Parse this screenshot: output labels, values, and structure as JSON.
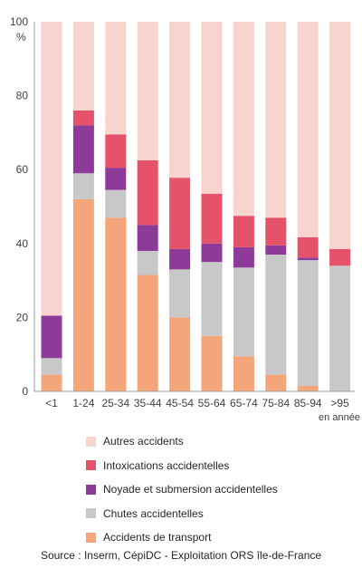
{
  "chart_data": {
    "type": "bar",
    "stacked": true,
    "ylabel": "%",
    "ylim": [
      0,
      100
    ],
    "yticks": [
      0,
      20,
      40,
      60,
      80,
      100
    ],
    "x_unit_label": "en année",
    "categories": [
      "<1",
      "1-24",
      "25-34",
      "35-44",
      "45-54",
      "55-64",
      "65-74",
      "75-84",
      "85-94",
      ">95"
    ],
    "series": [
      {
        "name": "Accidents de transport",
        "color": "#f4a67a",
        "values": [
          4.5,
          52,
          47,
          31.5,
          20,
          15,
          9.5,
          4.5,
          1.5,
          0
        ]
      },
      {
        "name": "Chutes accidentelles",
        "color": "#c8c8c8",
        "values": [
          4.5,
          7,
          7.5,
          6.5,
          13,
          20,
          24,
          32.5,
          34,
          34
        ]
      },
      {
        "name": "Noyade et submersion accidentelles",
        "color": "#8e3a98",
        "values": [
          11.5,
          13,
          6,
          7,
          5.5,
          5,
          5.5,
          2.5,
          0.7,
          0
        ]
      },
      {
        "name": "Intoxications accidentelles",
        "color": "#e5526a",
        "values": [
          0,
          4,
          9,
          17.5,
          19.3,
          13.5,
          8.5,
          7.5,
          5.5,
          4.5
        ]
      },
      {
        "name": "Autres accidents",
        "color": "#f8d4cf",
        "values": [
          79.5,
          24,
          30.5,
          37.5,
          42.2,
          46.5,
          52.5,
          53,
          58.3,
          61.5
        ]
      }
    ]
  },
  "source": "Source : Inserm, CépiDC - Exploitation ORS île-de-France"
}
